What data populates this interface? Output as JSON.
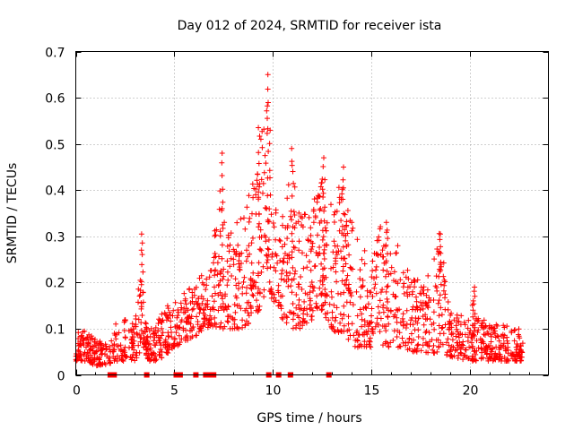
{
  "chart_data": {
    "type": "scatter",
    "title": "Day 012 of 2024, SRMTID for receiver ista",
    "xlabel": "GPS time / hours",
    "ylabel": "SRMTID / TECUs",
    "xlim": [
      0,
      24
    ],
    "ylim": [
      0,
      0.7
    ],
    "x_ticks": [
      "0",
      "5",
      "10",
      "15",
      "20"
    ],
    "x_tick_values": [
      0,
      5,
      10,
      15,
      20
    ],
    "y_ticks": [
      "0",
      "0.1",
      "0.2",
      "0.3",
      "0.4",
      "0.5",
      "0.6",
      "0.7"
    ],
    "y_tick_values": [
      0,
      0.1,
      0.2,
      0.3,
      0.4,
      0.5,
      0.6,
      0.7
    ],
    "grid": true,
    "marker": "plus",
    "color": "#ff0000",
    "series": [
      {
        "name": "SRMTID",
        "envelope": {
          "x": [
            0,
            0.5,
            1,
            1.5,
            2,
            2.5,
            3,
            3.3,
            3.5,
            3.7,
            4,
            4.5,
            5,
            5.5,
            6,
            6.5,
            7,
            7.3,
            7.5,
            8,
            8.5,
            9,
            9.3,
            9.5,
            9.7,
            9.8,
            10,
            10.5,
            11,
            11.5,
            12,
            12.3,
            12.5,
            13,
            13.5,
            14,
            14.5,
            15,
            15.5,
            16,
            16.5,
            17,
            17.5,
            18,
            18.5,
            19,
            19.5,
            20,
            20.5,
            21,
            21.5,
            22,
            22.5,
            22.7
          ],
          "y_low": [
            0.03,
            0.03,
            0.02,
            0.02,
            0.03,
            0.03,
            0.03,
            0.04,
            0.05,
            0.03,
            0.03,
            0.04,
            0.06,
            0.07,
            0.08,
            0.1,
            0.1,
            0.1,
            0.1,
            0.1,
            0.1,
            0.12,
            0.14,
            0.16,
            0.18,
            0.18,
            0.16,
            0.12,
            0.1,
            0.1,
            0.12,
            0.14,
            0.14,
            0.1,
            0.08,
            0.06,
            0.06,
            0.06,
            0.06,
            0.06,
            0.06,
            0.05,
            0.05,
            0.04,
            0.04,
            0.04,
            0.03,
            0.03,
            0.03,
            0.03,
            0.03,
            0.03,
            0.03,
            0.03
          ],
          "y_high": [
            0.09,
            0.1,
            0.08,
            0.07,
            0.11,
            0.12,
            0.11,
            0.3,
            0.12,
            0.1,
            0.11,
            0.14,
            0.17,
            0.18,
            0.2,
            0.22,
            0.28,
            0.47,
            0.35,
            0.32,
            0.36,
            0.45,
            0.52,
            0.54,
            0.65,
            0.65,
            0.38,
            0.35,
            0.48,
            0.36,
            0.34,
            0.45,
            0.44,
            0.37,
            0.43,
            0.34,
            0.28,
            0.26,
            0.33,
            0.3,
            0.28,
            0.22,
            0.2,
            0.22,
            0.31,
            0.14,
            0.13,
            0.12,
            0.13,
            0.11,
            0.11,
            0.11,
            0.1,
            0.08
          ]
        },
        "spikes": [
          {
            "x": 3.35,
            "y": 0.305
          },
          {
            "x": 7.4,
            "y": 0.48
          },
          {
            "x": 9.3,
            "y": 0.54
          },
          {
            "x": 9.7,
            "y": 0.65
          },
          {
            "x": 11.0,
            "y": 0.49
          },
          {
            "x": 12.6,
            "y": 0.47
          },
          {
            "x": 13.6,
            "y": 0.45
          },
          {
            "x": 15.8,
            "y": 0.33
          },
          {
            "x": 18.5,
            "y": 0.31
          },
          {
            "x": 20.2,
            "y": 0.19
          }
        ]
      }
    ],
    "gap_markers_x": [
      1.75,
      1.95,
      3.6,
      5.1,
      5.3,
      6.1,
      6.6,
      6.8,
      7.0,
      9.8,
      10.3,
      10.9,
      12.85
    ]
  }
}
